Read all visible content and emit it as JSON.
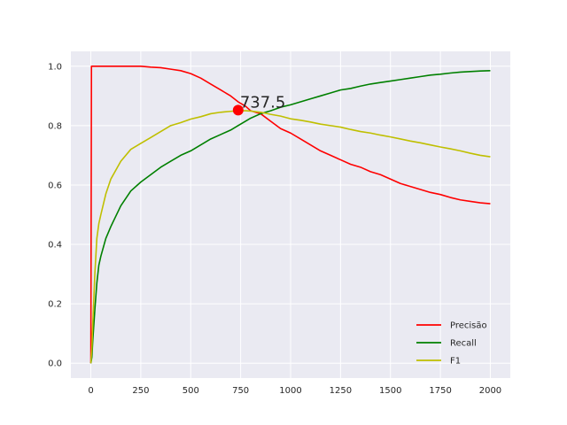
{
  "chart_data": {
    "type": "line",
    "xlim": [
      -100,
      2100
    ],
    "ylim": [
      -0.05,
      1.05
    ],
    "x_ticks": [
      0,
      250,
      500,
      750,
      1000,
      1250,
      1500,
      1750,
      2000
    ],
    "y_ticks": [
      0.0,
      0.2,
      0.4,
      0.6,
      0.8,
      1.0
    ],
    "x_tick_labels": [
      "0",
      "250",
      "500",
      "750",
      "1000",
      "1250",
      "1500",
      "1750",
      "2000"
    ],
    "y_tick_labels": [
      "0.0",
      "0.2",
      "0.4",
      "0.6",
      "0.8",
      "1.0"
    ],
    "grid": true,
    "legend_position": "lower-right",
    "background": "#eaeaf2",
    "series": [
      {
        "name": "Precisão",
        "color": "#ff0000",
        "x": [
          0,
          3,
          5,
          10,
          50,
          100,
          200,
          250,
          300,
          350,
          400,
          450,
          500,
          550,
          600,
          650,
          700,
          737.5,
          775,
          800,
          850,
          900,
          950,
          1000,
          1050,
          1100,
          1150,
          1200,
          1250,
          1300,
          1350,
          1400,
          1450,
          1500,
          1550,
          1600,
          1650,
          1700,
          1750,
          1800,
          1850,
          1900,
          1950,
          2000
        ],
        "y": [
          0.0,
          1.0,
          1.0,
          1.0,
          1.0,
          1.0,
          1.0,
          1.0,
          0.997,
          0.995,
          0.99,
          0.985,
          0.975,
          0.96,
          0.94,
          0.92,
          0.9,
          0.88,
          0.865,
          0.85,
          0.84,
          0.815,
          0.79,
          0.775,
          0.755,
          0.735,
          0.715,
          0.7,
          0.685,
          0.67,
          0.66,
          0.645,
          0.635,
          0.62,
          0.605,
          0.595,
          0.585,
          0.575,
          0.568,
          0.558,
          0.55,
          0.545,
          0.54,
          0.537
        ]
      },
      {
        "name": "Recall",
        "color": "#008000",
        "x": [
          0,
          5,
          10,
          20,
          30,
          40,
          50,
          75,
          100,
          150,
          200,
          250,
          300,
          350,
          400,
          450,
          500,
          550,
          600,
          650,
          700,
          737.5,
          775,
          800,
          850,
          900,
          950,
          1000,
          1050,
          1100,
          1150,
          1200,
          1250,
          1300,
          1350,
          1400,
          1450,
          1500,
          1550,
          1600,
          1650,
          1700,
          1750,
          1800,
          1850,
          1900,
          1950,
          2000
        ],
        "y": [
          0.0,
          0.02,
          0.08,
          0.18,
          0.27,
          0.33,
          0.36,
          0.42,
          0.46,
          0.53,
          0.58,
          0.61,
          0.635,
          0.66,
          0.68,
          0.7,
          0.715,
          0.735,
          0.755,
          0.77,
          0.785,
          0.8,
          0.815,
          0.825,
          0.84,
          0.85,
          0.862,
          0.87,
          0.88,
          0.89,
          0.9,
          0.91,
          0.92,
          0.925,
          0.933,
          0.94,
          0.945,
          0.95,
          0.955,
          0.96,
          0.965,
          0.97,
          0.973,
          0.977,
          0.98,
          0.982,
          0.984,
          0.985
        ]
      },
      {
        "name": "F1",
        "color": "#bfbf00",
        "x": [
          0,
          5,
          10,
          20,
          30,
          40,
          50,
          75,
          100,
          150,
          200,
          250,
          300,
          350,
          400,
          450,
          500,
          550,
          600,
          650,
          700,
          737.5,
          775,
          800,
          850,
          900,
          950,
          1000,
          1050,
          1100,
          1150,
          1200,
          1250,
          1300,
          1350,
          1400,
          1450,
          1500,
          1550,
          1600,
          1650,
          1700,
          1750,
          1800,
          1850,
          1900,
          1950,
          2000
        ],
        "y": [
          0.0,
          0.05,
          0.14,
          0.3,
          0.42,
          0.47,
          0.5,
          0.57,
          0.62,
          0.68,
          0.72,
          0.74,
          0.76,
          0.78,
          0.8,
          0.81,
          0.822,
          0.83,
          0.84,
          0.845,
          0.848,
          0.85,
          0.85,
          0.849,
          0.845,
          0.838,
          0.832,
          0.823,
          0.818,
          0.812,
          0.805,
          0.8,
          0.795,
          0.787,
          0.78,
          0.775,
          0.768,
          0.762,
          0.755,
          0.748,
          0.742,
          0.735,
          0.728,
          0.722,
          0.715,
          0.707,
          0.7,
          0.695
        ]
      }
    ],
    "annotation": {
      "text": "737.5",
      "x": 737.5,
      "y": 0.852,
      "color": "#ff0000"
    }
  }
}
